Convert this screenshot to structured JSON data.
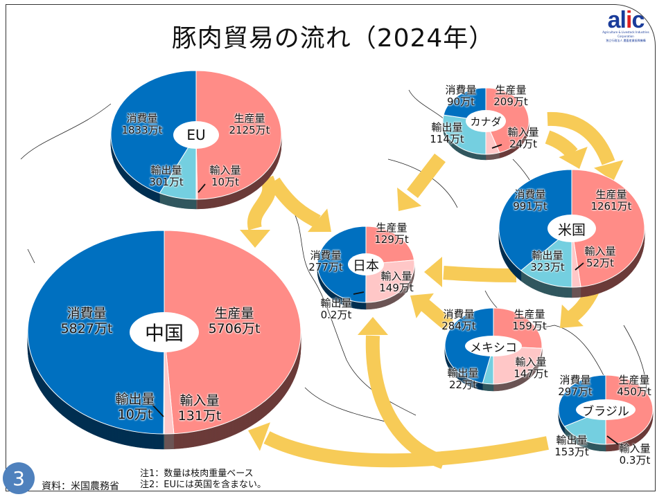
{
  "title": "豚肉貿易の流れ（2024年）",
  "logo": {
    "mark": "alic",
    "sub1": "Agriculture & Livestock Industries Corporation",
    "sub2": "独立行政法人 農畜産業振興機構"
  },
  "page_number": "3",
  "source": "資料：米国農務省",
  "notes": [
    "注1：数量は枝肉重量ベース",
    "注2：EUには英国を含まない。"
  ],
  "colors": {
    "production": "#FF8C87",
    "import": "#FFC7C7",
    "export": "#74CFE0",
    "consumption": "#0070C0",
    "arrow": "#F7CB57"
  },
  "pies": [
    {
      "id": "eu",
      "name": "EU",
      "production": {
        "label": "生産量",
        "value": "2125万t",
        "n": 2125
      },
      "import": {
        "label": "輸入量",
        "value": "10万t",
        "n": 10
      },
      "export": {
        "label": "輸出量",
        "value": "301万t",
        "n": 301
      },
      "consumption": {
        "label": "消費量",
        "value": "1833万t",
        "n": 1833
      }
    },
    {
      "id": "canada",
      "name": "カナダ",
      "production": {
        "label": "生産量",
        "value": "209万t",
        "n": 209
      },
      "import": {
        "label": "輸入量",
        "value": "24万t",
        "n": 24
      },
      "export": {
        "label": "輸出量",
        "value": "114万t",
        "n": 114
      },
      "consumption": {
        "label": "消費量",
        "value": "90万t",
        "n": 90
      }
    },
    {
      "id": "us",
      "name": "米国",
      "production": {
        "label": "生産量",
        "value": "1261万t",
        "n": 1261
      },
      "import": {
        "label": "輸入量",
        "value": "52万t",
        "n": 52
      },
      "export": {
        "label": "輸出量",
        "value": "323万t",
        "n": 323
      },
      "consumption": {
        "label": "消費量",
        "value": "991万t",
        "n": 991
      }
    },
    {
      "id": "japan",
      "name": "日本",
      "production": {
        "label": "生産量",
        "value": "129万t",
        "n": 129
      },
      "import": {
        "label": "輸入量",
        "value": "149万t",
        "n": 149
      },
      "export": {
        "label": "輸出量",
        "value": "0.2万t",
        "n": 0.2
      },
      "consumption": {
        "label": "消費量",
        "value": "277万t",
        "n": 277
      }
    },
    {
      "id": "china",
      "name": "中国",
      "production": {
        "label": "生産量",
        "value": "5706万t",
        "n": 5706
      },
      "import": {
        "label": "輸入量",
        "value": "131万t",
        "n": 131
      },
      "export": {
        "label": "輸出量",
        "value": "10万t",
        "n": 10
      },
      "consumption": {
        "label": "消費量",
        "value": "5827万t",
        "n": 5827
      }
    },
    {
      "id": "mexico",
      "name": "メキシコ",
      "production": {
        "label": "生産量",
        "value": "159万t",
        "n": 159
      },
      "import": {
        "label": "輸入量",
        "value": "147万t",
        "n": 147
      },
      "export": {
        "label": "輸出量",
        "value": "22万t",
        "n": 22
      },
      "consumption": {
        "label": "消費量",
        "value": "284万t",
        "n": 284
      }
    },
    {
      "id": "brazil",
      "name": "ブラジル",
      "production": {
        "label": "生産量",
        "value": "450万t",
        "n": 450
      },
      "import": {
        "label": "輸入量",
        "value": "0.3万t",
        "n": 0.3
      },
      "export": {
        "label": "輸出量",
        "value": "153万t",
        "n": 153
      },
      "consumption": {
        "label": "消費量",
        "value": "297万t",
        "n": 297
      }
    }
  ],
  "flows": [
    {
      "from": "EU",
      "to": "中国"
    },
    {
      "from": "EU",
      "to": "日本"
    },
    {
      "from": "カナダ",
      "to": "日本"
    },
    {
      "from": "カナダ",
      "to": "米国"
    },
    {
      "from": "米国",
      "to": "日本"
    },
    {
      "from": "米国",
      "to": "メキシコ"
    },
    {
      "from": "メキシコ",
      "to": "日本"
    },
    {
      "from": "ブラジル",
      "to": "中国"
    },
    {
      "from": "ブラジル",
      "to": "日本"
    }
  ]
}
